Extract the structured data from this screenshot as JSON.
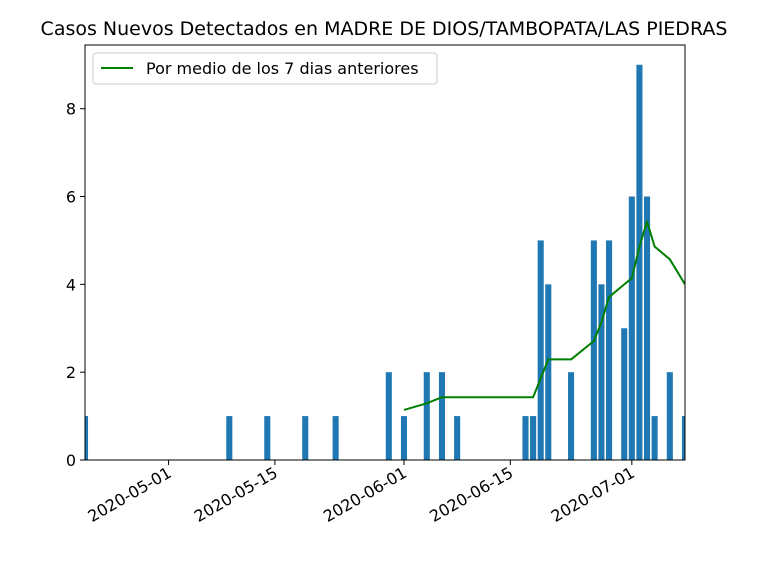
{
  "chart_data": {
    "type": "bar",
    "title": "Casos Nuevos Detectados en MADRE DE DIOS/TAMBOPATA/LAS PIEDRAS",
    "xlabel": "",
    "ylabel": "",
    "xlim": [
      "2020-04-20",
      "2020-07-08"
    ],
    "ylim": [
      0,
      9.45
    ],
    "x_ticks": [
      "2020-05-01",
      "2020-05-15",
      "2020-06-01",
      "2020-06-15",
      "2020-07-01"
    ],
    "y_ticks": [
      0,
      2,
      4,
      6,
      8
    ],
    "legend_position": "top-left",
    "grid": false,
    "bar_color": "#1f77b4",
    "line_color": "#008000",
    "series": [
      {
        "kind": "bar",
        "points": [
          {
            "x": "2020-04-20",
            "y": 1
          },
          {
            "x": "2020-05-09",
            "y": 1
          },
          {
            "x": "2020-05-14",
            "y": 1
          },
          {
            "x": "2020-05-19",
            "y": 1
          },
          {
            "x": "2020-05-23",
            "y": 1
          },
          {
            "x": "2020-05-30",
            "y": 2
          },
          {
            "x": "2020-06-01",
            "y": 1
          },
          {
            "x": "2020-06-04",
            "y": 2
          },
          {
            "x": "2020-06-06",
            "y": 2
          },
          {
            "x": "2020-06-08",
            "y": 1
          },
          {
            "x": "2020-06-17",
            "y": 1
          },
          {
            "x": "2020-06-18",
            "y": 1
          },
          {
            "x": "2020-06-19",
            "y": 5
          },
          {
            "x": "2020-06-20",
            "y": 4
          },
          {
            "x": "2020-06-23",
            "y": 2
          },
          {
            "x": "2020-06-26",
            "y": 5
          },
          {
            "x": "2020-06-27",
            "y": 4
          },
          {
            "x": "2020-06-28",
            "y": 5
          },
          {
            "x": "2020-06-30",
            "y": 3
          },
          {
            "x": "2020-07-01",
            "y": 6
          },
          {
            "x": "2020-07-02",
            "y": 9
          },
          {
            "x": "2020-07-03",
            "y": 6
          },
          {
            "x": "2020-07-04",
            "y": 1
          },
          {
            "x": "2020-07-06",
            "y": 2
          },
          {
            "x": "2020-07-08",
            "y": 1
          }
        ]
      },
      {
        "kind": "line",
        "name": "Por medio de los 7 dias anteriores",
        "points": [
          {
            "x": "2020-06-01",
            "y": 1.14
          },
          {
            "x": "2020-06-04",
            "y": 1.29
          },
          {
            "x": "2020-06-06",
            "y": 1.43
          },
          {
            "x": "2020-06-08",
            "y": 1.43
          },
          {
            "x": "2020-06-17",
            "y": 1.43
          },
          {
            "x": "2020-06-18",
            "y": 1.43
          },
          {
            "x": "2020-06-19",
            "y": 1.86
          },
          {
            "x": "2020-06-20",
            "y": 2.29
          },
          {
            "x": "2020-06-23",
            "y": 2.29
          },
          {
            "x": "2020-06-26",
            "y": 2.71
          },
          {
            "x": "2020-06-27",
            "y": 3.14
          },
          {
            "x": "2020-06-28",
            "y": 3.71
          },
          {
            "x": "2020-06-30",
            "y": 4.0
          },
          {
            "x": "2020-07-01",
            "y": 4.14
          },
          {
            "x": "2020-07-02",
            "y": 4.86
          },
          {
            "x": "2020-07-03",
            "y": 5.43
          },
          {
            "x": "2020-07-04",
            "y": 4.86
          },
          {
            "x": "2020-07-06",
            "y": 4.57
          },
          {
            "x": "2020-07-08",
            "y": 4.0
          }
        ]
      }
    ]
  }
}
